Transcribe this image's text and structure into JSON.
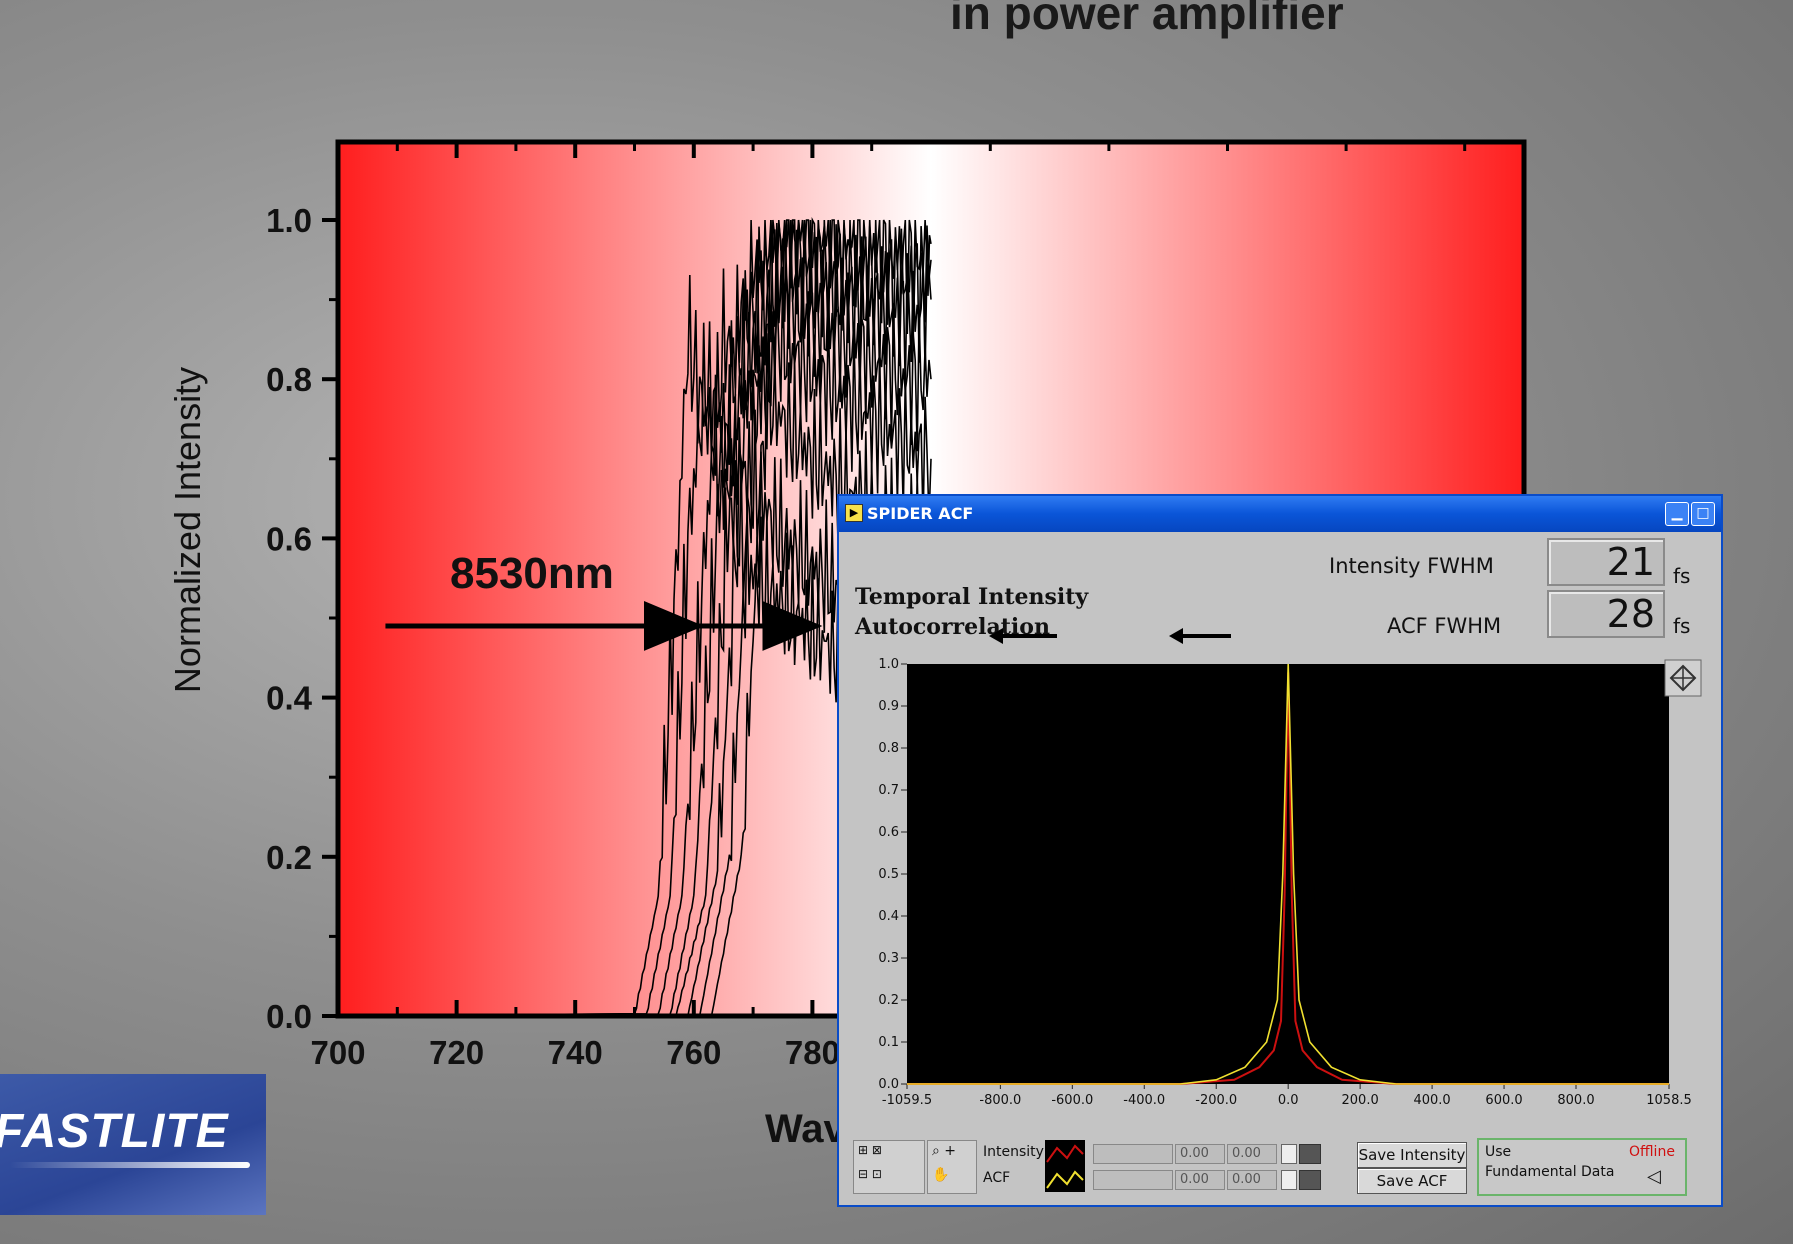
{
  "headline": "in power amplifier",
  "chart_data": [
    {
      "type": "line",
      "title": "",
      "xlabel": "Wav",
      "ylabel": "Normalized Intensity",
      "xlim": [
        700,
        900
      ],
      "ylim": [
        0,
        1.1
      ],
      "x_ticks": [
        "700",
        "720",
        "740",
        "760",
        "780"
      ],
      "y_ticks": [
        "0.0",
        "0.2",
        "0.4",
        "0.6",
        "0.8",
        "1.0"
      ],
      "x_tick_values": [
        700,
        720,
        740,
        760,
        780
      ],
      "y_tick_values": [
        0,
        0.2,
        0.4,
        0.6,
        0.8,
        1.0
      ],
      "series": [
        {
          "x": [
            750,
            754,
            757,
            759,
            762,
            770,
            785,
            800
          ],
          "values": [
            0.0,
            0.15,
            0.55,
            0.85,
            0.75,
            0.55,
            0.45,
            0.5
          ]
        },
        {
          "x": [
            752,
            756,
            759,
            762,
            766,
            775,
            790,
            800
          ],
          "values": [
            0.0,
            0.15,
            0.6,
            0.8,
            0.72,
            0.6,
            0.5,
            0.55
          ]
        },
        {
          "x": [
            754,
            758,
            762,
            765,
            770,
            780,
            795,
            800
          ],
          "values": [
            0.0,
            0.15,
            0.6,
            0.85,
            0.8,
            0.7,
            0.6,
            0.6
          ]
        },
        {
          "x": [
            756,
            760,
            764,
            768,
            774,
            785,
            795,
            800
          ],
          "values": [
            0.0,
            0.15,
            0.62,
            0.9,
            0.85,
            0.78,
            0.72,
            0.7
          ]
        },
        {
          "x": [
            757,
            762,
            766,
            770,
            776,
            786,
            796,
            800
          ],
          "values": [
            0.0,
            0.15,
            0.65,
            0.95,
            0.9,
            0.85,
            0.8,
            0.8
          ]
        },
        {
          "x": [
            759,
            764,
            768,
            772,
            778,
            788,
            797,
            800
          ],
          "values": [
            0.0,
            0.18,
            0.7,
            0.98,
            0.92,
            0.9,
            0.88,
            0.9
          ]
        },
        {
          "x": [
            761,
            766,
            770,
            774,
            780,
            790,
            798,
            800
          ],
          "values": [
            0.0,
            0.2,
            0.72,
            1.0,
            0.95,
            0.93,
            0.92,
            0.95
          ]
        },
        {
          "x": [
            763,
            768,
            772,
            776,
            782,
            792,
            799,
            800
          ],
          "values": [
            0.0,
            0.2,
            0.75,
            1.0,
            0.98,
            0.96,
            0.95,
            0.97
          ]
        }
      ],
      "annotations": [
        {
          "text": "8530nm",
          "x": 727,
          "y": 0.55
        },
        {
          "text": "",
          "arrow_from": [
            708,
            0.49
          ],
          "arrow_to": [
            760,
            0.49
          ]
        },
        {
          "text": "",
          "arrow_from": [
            716,
            0.49
          ],
          "arrow_to": [
            780,
            0.49
          ]
        }
      ],
      "background_gradient": [
        "#ff2020",
        "#ffffff",
        "#ff2020"
      ]
    },
    {
      "type": "line",
      "title": "Temporal Intensity Autocorrelation",
      "xlim": [
        -1059.5,
        1058.5
      ],
      "ylim": [
        0,
        1.0
      ],
      "x_ticks": [
        "-1059.5",
        "-800.0",
        "-600.0",
        "-400.0",
        "-200.0",
        "0.0",
        "200.0",
        "400.0",
        "600.0",
        "800.0",
        "1058.5"
      ],
      "x_tick_values": [
        -1059.5,
        -800,
        -600,
        -400,
        -200,
        0,
        200,
        400,
        600,
        800,
        1058.5
      ],
      "y_ticks": [
        "0.0",
        "0.1",
        "0.2",
        "0.3",
        "0.4",
        "0.5",
        "0.6",
        "0.7",
        "0.8",
        "0.9",
        "1.0"
      ],
      "y_tick_values": [
        0,
        0.1,
        0.2,
        0.3,
        0.4,
        0.5,
        0.6,
        0.7,
        0.8,
        0.9,
        1.0
      ],
      "series": [
        {
          "name": "Intensity",
          "color": "#cc1010",
          "x": [
            -1059.5,
            -300,
            -150,
            -80,
            -40,
            -20,
            -10,
            0,
            10,
            20,
            40,
            80,
            150,
            300,
            1058.5
          ],
          "values": [
            0.0,
            0.0,
            0.01,
            0.04,
            0.08,
            0.15,
            0.45,
            0.98,
            0.45,
            0.15,
            0.08,
            0.04,
            0.01,
            0.0,
            0.0
          ]
        },
        {
          "name": "ACF",
          "color": "#f0e030",
          "x": [
            -1059.5,
            -300,
            -200,
            -120,
            -60,
            -30,
            -15,
            0,
            15,
            30,
            60,
            120,
            200,
            300,
            1058.5
          ],
          "values": [
            0.0,
            0.0,
            0.01,
            0.04,
            0.1,
            0.2,
            0.5,
            1.0,
            0.5,
            0.2,
            0.1,
            0.04,
            0.01,
            0.0,
            0.0
          ]
        }
      ]
    }
  ],
  "window": {
    "title": "SPIDER ACF",
    "heading_line1": "Temporal Intensity",
    "heading_line2": "Autocorrelation",
    "intensity_label": "Intensity FWHM",
    "intensity_value": "21",
    "intensity_unit": "fs",
    "acf_label": "ACF FWHM",
    "acf_value": "28",
    "acf_unit": "fs",
    "legend_intensity": "Intensity",
    "legend_acf": "ACF",
    "field_1": "0.00",
    "field_2": "0.00",
    "field_3": "0.00",
    "field_4": "0.00",
    "save_intensity": "Save Intensity",
    "save_acf": "Save ACF",
    "use_label": "Use",
    "fundamental_label": "Fundamental Data",
    "offline_label": "Offline"
  },
  "logo_text": "FASTLITE"
}
